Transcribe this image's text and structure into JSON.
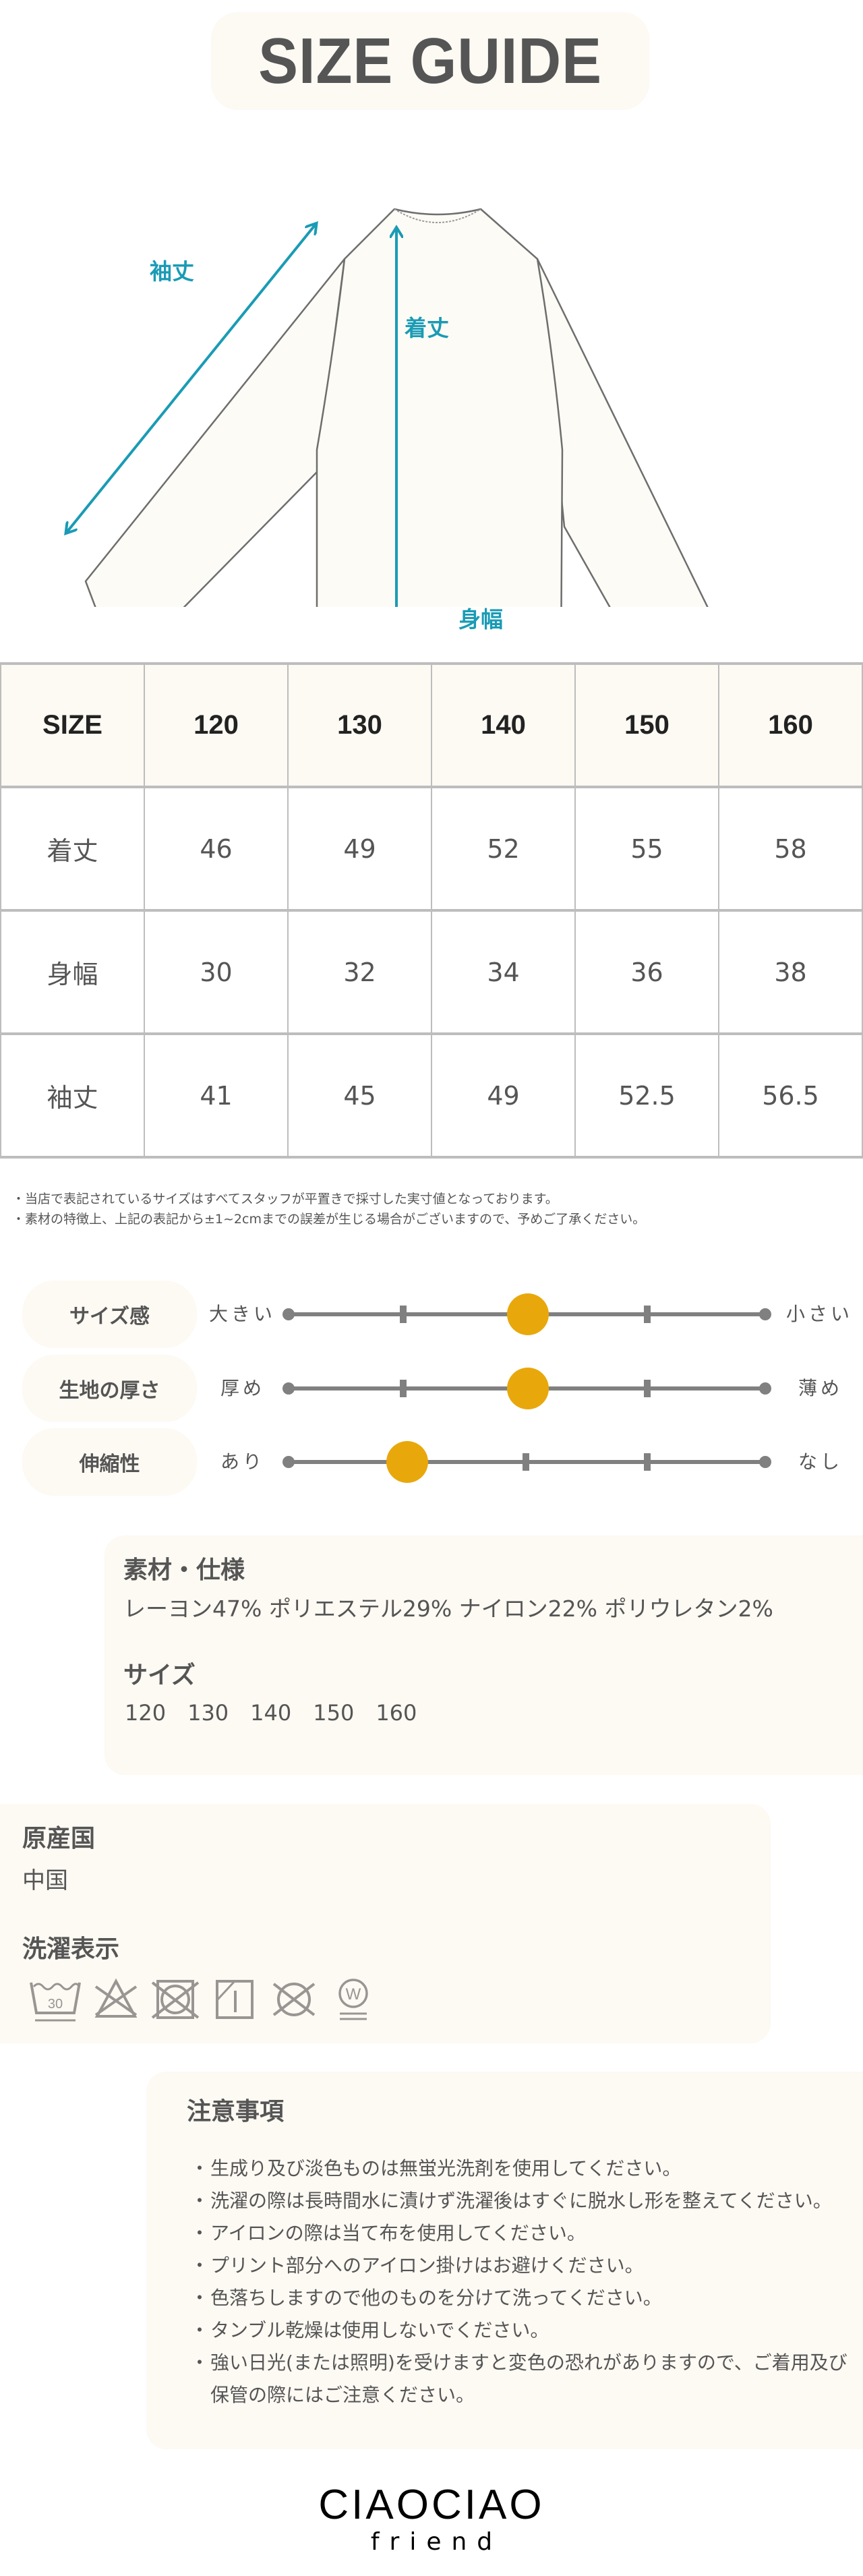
{
  "title": "SIZE GUIDE",
  "diagram": {
    "labels": {
      "sleeve_length": "袖丈",
      "body_length": "着丈",
      "body_width": "身幅"
    },
    "arrow_color": "#1a9bb5"
  },
  "size_table": {
    "header_label": "SIZE",
    "sizes": [
      "120",
      "130",
      "140",
      "150",
      "160"
    ],
    "rows": [
      {
        "label": "着丈",
        "values": [
          "46",
          "49",
          "52",
          "55",
          "58"
        ]
      },
      {
        "label": "身幅",
        "values": [
          "30",
          "32",
          "34",
          "36",
          "38"
        ]
      },
      {
        "label": "袖丈",
        "values": [
          "41",
          "45",
          "49",
          "52.5",
          "56.5"
        ]
      }
    ]
  },
  "disclaimer": [
    "・当店で表記されているサイズはすべてスタッフが平置きで採寸した実寸値となっております。",
    "・素材の特徴上、上記の表記から±1~2cmまでの誤差が生じる場合がございますので、予めご了承ください。"
  ],
  "sliders": {
    "steps": 5,
    "knob_color": "#e8a80c",
    "items": [
      {
        "label": "サイズ感",
        "left": "大きい",
        "right": "小さい",
        "value": 2
      },
      {
        "label": "生地の厚さ",
        "left": "厚め",
        "right": "薄め",
        "value": 2
      },
      {
        "label": "伸縮性",
        "left": "あり",
        "right": "なし",
        "value": 1
      }
    ]
  },
  "material": {
    "heading": "素材・仕様",
    "text": "レーヨン47% ポリエステル29% ナイロン22% ポリウレタン2%",
    "size_heading": "サイズ",
    "sizes_text": "120　130　140　150　160"
  },
  "origin": {
    "heading": "原産国",
    "value": "中国",
    "care_heading": "洗濯表示",
    "care_icons": [
      "wash-30-gentle-icon",
      "no-bleach-icon",
      "no-tumble-dry-icon",
      "line-dry-shade-icon",
      "no-dry-clean-icon",
      "wet-clean-very-gentle-icon"
    ],
    "care_icon_text": {
      "wash_temp": "30",
      "wet_clean": "W"
    }
  },
  "notes": {
    "heading": "注意事項",
    "items": [
      "生成り及び淡色ものは無蛍光洗剤を使用してください。",
      "洗濯の際は長時間水に漬けず洗濯後はすぐに脱水し形を整えてください。",
      "アイロンの際は当て布を使用してください。",
      "プリント部分へのアイロン掛けはお避けください。",
      "色落ちしますので他のものを分けて洗ってください。",
      "タンブル乾燥は使用しないでください。",
      "強い日光(または照明)を受けますと変色の恐れがありますので、ご着用及び保管の際にはご注意ください。"
    ]
  },
  "brand": {
    "name": "CIAOCIAO",
    "sub": "friend"
  }
}
